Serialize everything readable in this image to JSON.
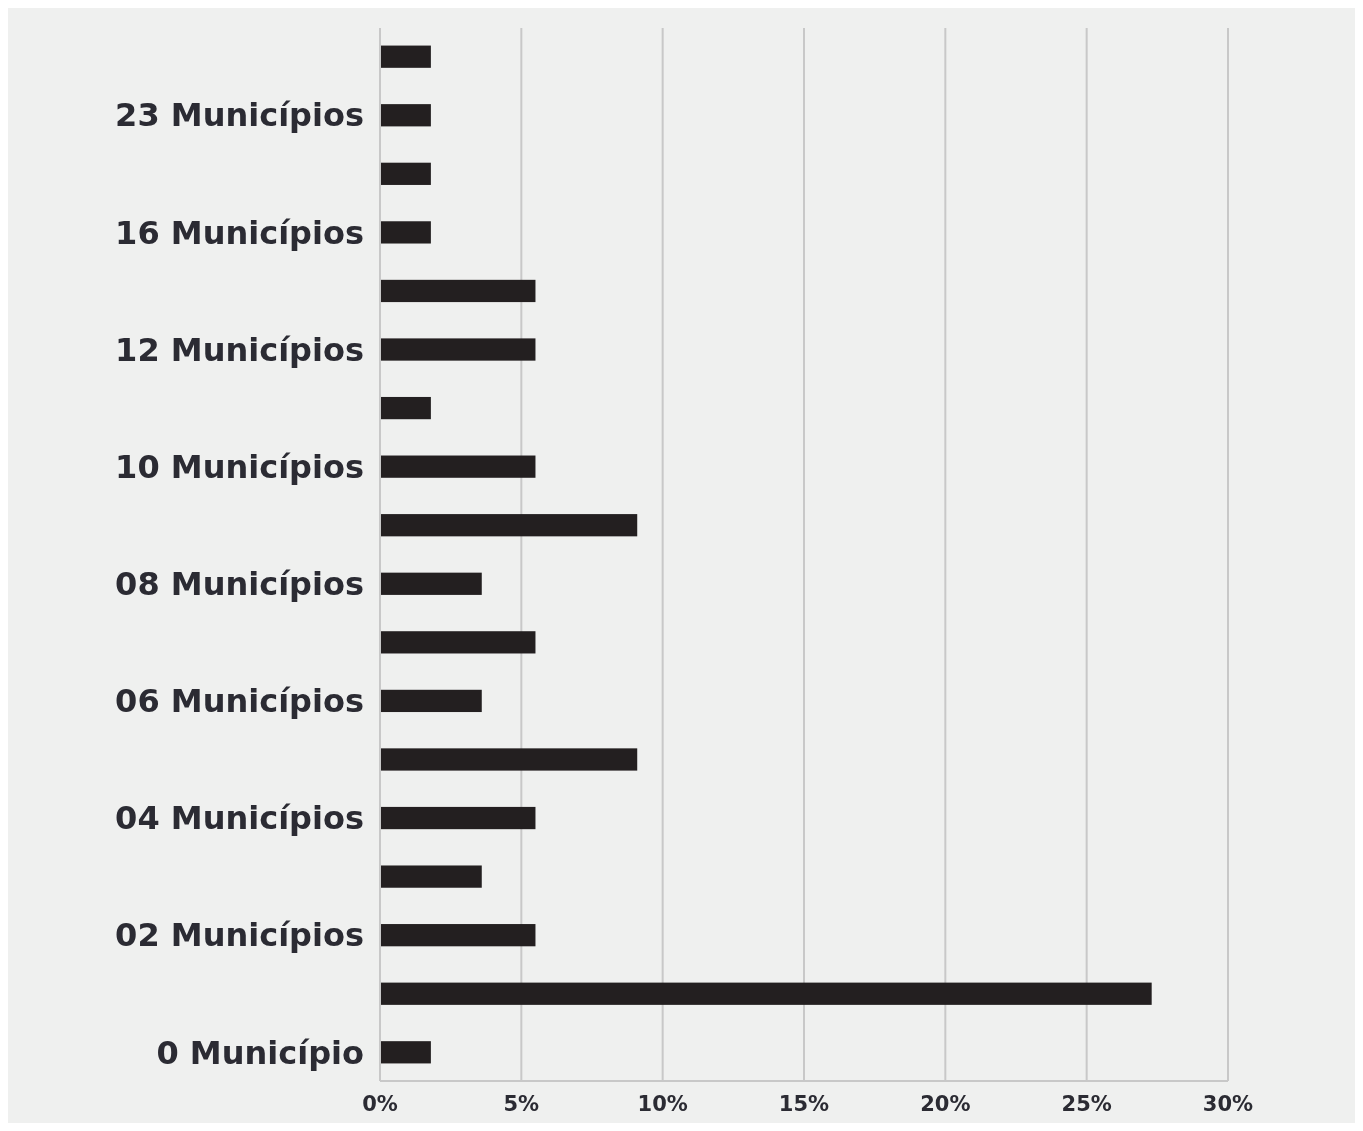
{
  "chart_data": {
    "type": "bar",
    "orientation": "horizontal",
    "categories": [
      null,
      "23 Municípios",
      null,
      "16 Municípios",
      null,
      "12 Municípios",
      null,
      "10 Municípios",
      null,
      "08 Municípios",
      null,
      "06 Municípios",
      null,
      "04 Municípios",
      null,
      "02 Municípios",
      null,
      "0 Município"
    ],
    "values": [
      1.8,
      1.8,
      1.8,
      1.8,
      5.5,
      5.5,
      1.8,
      5.5,
      9.1,
      3.6,
      5.5,
      3.6,
      9.1,
      5.5,
      3.6,
      5.5,
      27.3,
      1.8
    ],
    "color": "#231f20",
    "xlim": [
      0,
      30
    ],
    "xticks": [
      {
        "value": 0,
        "label": "0%"
      },
      {
        "value": 5,
        "label": "5%"
      },
      {
        "value": 10,
        "label": "10%"
      },
      {
        "value": 15,
        "label": "15%"
      },
      {
        "value": 20,
        "label": "20%"
      },
      {
        "value": 25,
        "label": "25%"
      },
      {
        "value": 30,
        "label": "30%"
      }
    ],
    "grid": "x"
  }
}
